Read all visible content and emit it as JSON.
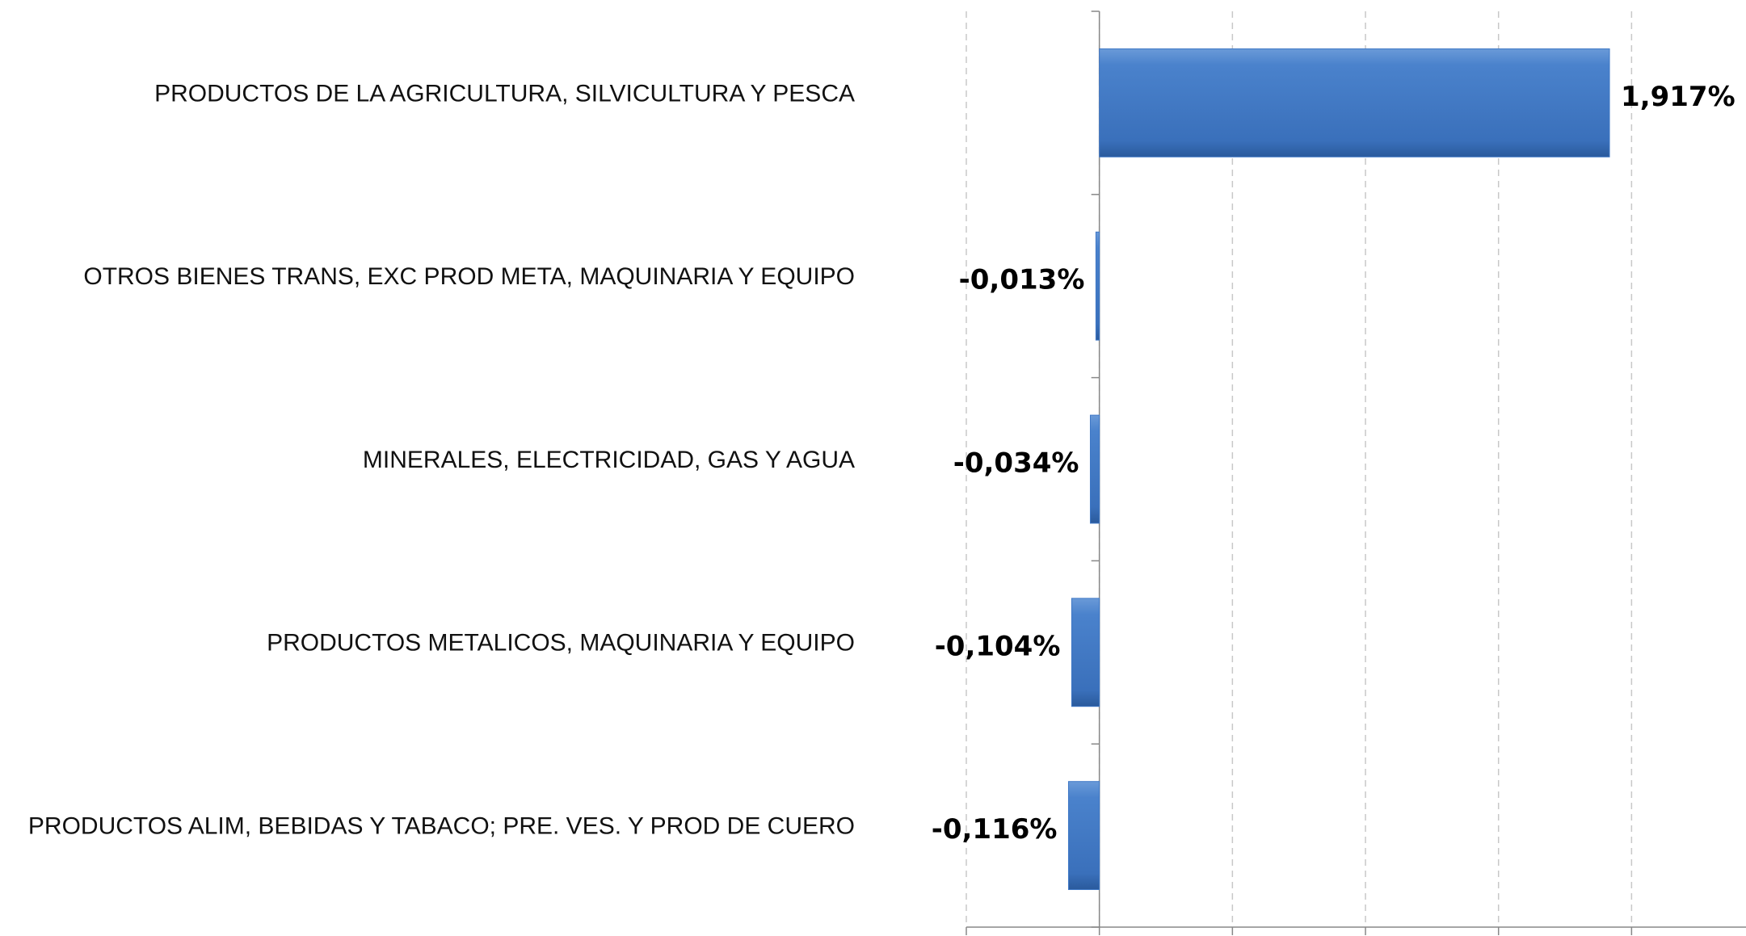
{
  "chart_data": {
    "type": "hbar",
    "categories": [
      "PRODUCTOS DE LA AGRICULTURA, SILVICULTURA Y PESCA",
      "OTROS BIENES TRANS, EXC PROD META, MAQUINARIA Y EQUIPO",
      "MINERALES, ELECTRICIDAD, GAS Y AGUA",
      "PRODUCTOS METALICOS, MAQUINARIA Y EQUIPO",
      "PRODUCTOS  ALIM, BEBIDAS Y TABACO; PRE. VES. Y PROD DE CUERO"
    ],
    "values": [
      1.917,
      -0.013,
      -0.034,
      -0.104,
      -0.116
    ],
    "value_labels": [
      "1,917%",
      "-0,013%",
      "-0,034%",
      "-0,104%",
      "-0,116%"
    ],
    "color": "#3f78c6",
    "xlim": [
      -0.5,
      2.43
    ],
    "xticks": [
      -0.5,
      0,
      0.5,
      1,
      1.5,
      2
    ],
    "grid": true
  }
}
